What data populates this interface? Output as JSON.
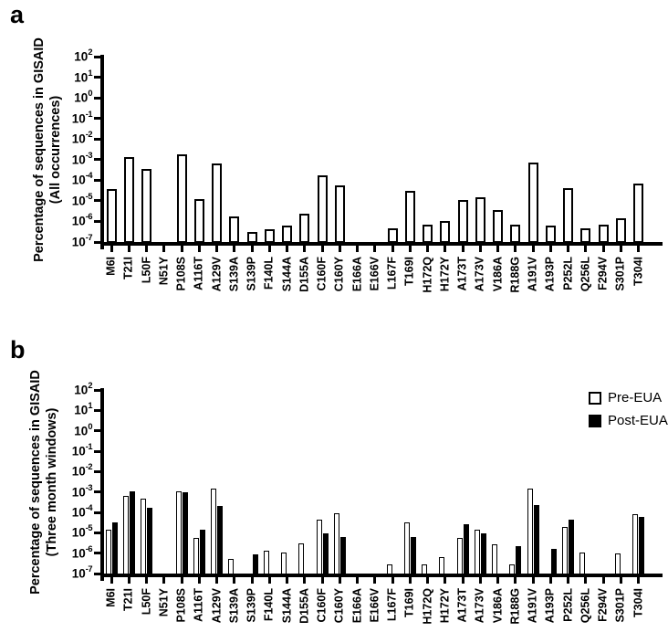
{
  "figure": {
    "panel_a_letter": "a",
    "panel_b_letter": "b"
  },
  "legend": {
    "items": [
      {
        "label": "Pre-EUA",
        "fill": "#ffffff"
      },
      {
        "label": "Post-EUA",
        "fill": "#000000"
      }
    ]
  },
  "colors": {
    "bar_outline": "#000000",
    "bar_open_fill": "#ffffff",
    "bar_solid_fill": "#000000"
  },
  "chart_data": [
    {
      "panel": "a",
      "type": "bar",
      "yscale": "log",
      "ylim": [
        1e-07,
        100
      ],
      "grid": false,
      "ylabel_line1": "Percentage of sequences in GISAID",
      "ylabel_line2": "(All occurrences)",
      "ytick_base": "10",
      "ytick_exponents": [
        2,
        1,
        0,
        -1,
        -2,
        -3,
        -4,
        -5,
        -6,
        -7
      ],
      "categories": [
        "M6I",
        "T21I",
        "L50F",
        "N51Y",
        "P108S",
        "A116T",
        "A129V",
        "S139A",
        "S139P",
        "F140L",
        "S144A",
        "D155A",
        "C160F",
        "C160Y",
        "E166A",
        "E166V",
        "L167F",
        "T169I",
        "H172Q",
        "H172Y",
        "A173T",
        "A173V",
        "V186A",
        "R188G",
        "A191V",
        "A193P",
        "P252L",
        "Q256L",
        "F294V",
        "S301P",
        "T304I"
      ],
      "values": [
        4e-05,
        0.0014,
        0.0004,
        null,
        0.0019,
        1.3e-05,
        0.0007,
        2e-06,
        3.5e-07,
        4.5e-07,
        7e-07,
        2.5e-06,
        0.0002,
        6e-05,
        null,
        null,
        5e-07,
        3.5e-05,
        8e-07,
        1.2e-06,
        1.2e-05,
        1.7e-05,
        4e-06,
        8e-07,
        0.0008,
        7e-07,
        4.5e-05,
        5e-07,
        8e-07,
        1.5e-06,
        8e-05
      ]
    },
    {
      "panel": "b",
      "type": "bar",
      "yscale": "log",
      "ylim": [
        1e-07,
        100
      ],
      "grid": false,
      "legend_position": "top-right",
      "ylabel_line1": "Percentage of sequences in GISAID",
      "ylabel_line2": "(Three month windows)",
      "ytick_base": "10",
      "ytick_exponents": [
        2,
        1,
        0,
        -1,
        -2,
        -3,
        -4,
        -5,
        -6,
        -7
      ],
      "categories": [
        "M6I",
        "T21I",
        "L50F",
        "N51Y",
        "P108S",
        "A116T",
        "A129V",
        "S139A",
        "S139P",
        "F140L",
        "S144A",
        "D155A",
        "C160F",
        "C160Y",
        "E166A",
        "E166V",
        "L167F",
        "T169I",
        "H172Q",
        "H172Y",
        "A173T",
        "A173V",
        "V186A",
        "R188G",
        "A191V",
        "A193P",
        "P252L",
        "Q256L",
        "F294V",
        "S301P",
        "T304I"
      ],
      "series": [
        {
          "name": "Pre-EUA",
          "fill": "#ffffff",
          "values": [
            1.5e-05,
            0.0007,
            0.0005,
            null,
            0.0012,
            6e-06,
            0.0017,
            6e-07,
            null,
            1.5e-06,
            1.2e-06,
            3.5e-06,
            5e-05,
            0.0001,
            null,
            null,
            3e-07,
            3.5e-05,
            3e-07,
            7e-07,
            6e-06,
            1.5e-05,
            3e-06,
            3e-07,
            0.0016,
            null,
            2.2e-05,
            1.2e-06,
            null,
            1.1e-06,
            9e-05
          ]
        },
        {
          "name": "Post-EUA",
          "fill": "#000000",
          "values": [
            3.5e-05,
            0.0012,
            0.00018,
            null,
            0.0011,
            1.6e-05,
            0.00023,
            null,
            1e-06,
            null,
            null,
            null,
            1e-05,
            7e-06,
            null,
            null,
            null,
            7e-06,
            null,
            null,
            3e-05,
            1e-05,
            null,
            2.5e-06,
            0.00026,
            1.8e-06,
            5e-05,
            null,
            null,
            null,
            6.5e-05
          ]
        }
      ]
    }
  ]
}
